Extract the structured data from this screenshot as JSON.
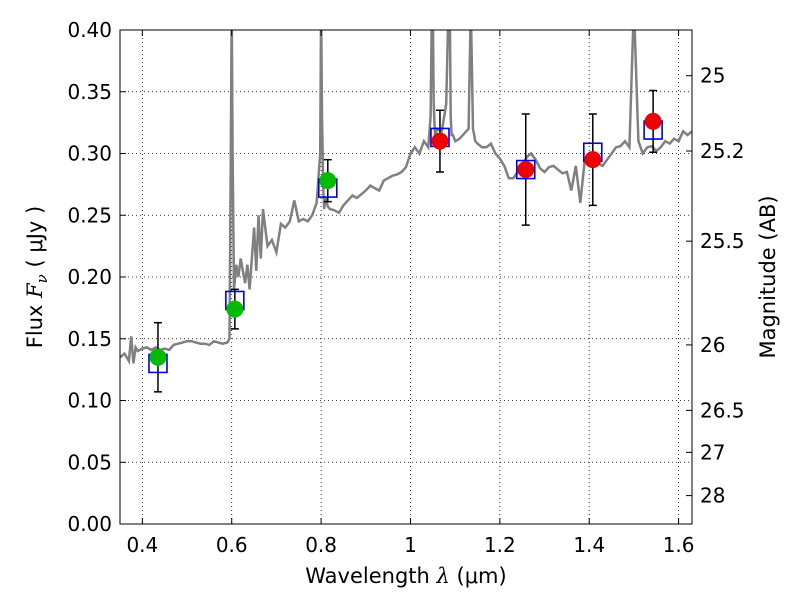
{
  "chart_data": {
    "type": "scatter",
    "xlabel": {
      "prefix": "Wavelength  ",
      "sym": "λ",
      "unit": " (μm)"
    },
    "ylabel": {
      "prefix": "Flux  ",
      "sym": "F",
      "sub": "ν",
      "unit": "  ( μJy )"
    },
    "y2label": "Magnitude (AB)",
    "xlim": [
      0.35,
      1.63
    ],
    "ylim": [
      0.0,
      0.4
    ],
    "grid": true,
    "x_ticks": [
      {
        "value": 0.4,
        "label": "0.4"
      },
      {
        "value": 0.6,
        "label": "0.6"
      },
      {
        "value": 0.8,
        "label": "0.8"
      },
      {
        "value": 1.0,
        "label": "1"
      },
      {
        "value": 1.2,
        "label": "1.2"
      },
      {
        "value": 1.4,
        "label": "1.4"
      },
      {
        "value": 1.6,
        "label": "1.6"
      }
    ],
    "y_ticks": [
      {
        "value": 0.0,
        "label": "0.00"
      },
      {
        "value": 0.05,
        "label": "0.05"
      },
      {
        "value": 0.1,
        "label": "0.10"
      },
      {
        "value": 0.15,
        "label": "0.15"
      },
      {
        "value": 0.2,
        "label": "0.20"
      },
      {
        "value": 0.25,
        "label": "0.25"
      },
      {
        "value": 0.3,
        "label": "0.30"
      },
      {
        "value": 0.35,
        "label": "0.35"
      },
      {
        "value": 0.4,
        "label": "0.40"
      }
    ],
    "y2_ticks": [
      {
        "label": "25",
        "flux": 0.363
      },
      {
        "label": "25.2",
        "flux": 0.302
      },
      {
        "label": "25.5",
        "flux": 0.229
      },
      {
        "label": "26",
        "flux": 0.145
      },
      {
        "label": "26.5",
        "flux": 0.092
      },
      {
        "label": "27",
        "flux": 0.058
      },
      {
        "label": "28",
        "flux": 0.023
      }
    ],
    "colors": {
      "spectrum": "#808080",
      "model_box": "#0000dd",
      "ground_point": "#00bb00",
      "space_point": "#ee0000",
      "errorbar": "#000000"
    },
    "spectrum": {
      "x": [
        0.35,
        0.36,
        0.37,
        0.375,
        0.38,
        0.385,
        0.39,
        0.4,
        0.41,
        0.42,
        0.43,
        0.44,
        0.45,
        0.46,
        0.47,
        0.48,
        0.49,
        0.5,
        0.51,
        0.52,
        0.53,
        0.54,
        0.55,
        0.56,
        0.57,
        0.58,
        0.59,
        0.595,
        0.598,
        0.6,
        0.602,
        0.605,
        0.61,
        0.615,
        0.62,
        0.625,
        0.63,
        0.635,
        0.64,
        0.65,
        0.655,
        0.66,
        0.665,
        0.67,
        0.68,
        0.69,
        0.7,
        0.71,
        0.72,
        0.73,
        0.74,
        0.75,
        0.76,
        0.77,
        0.78,
        0.79,
        0.798,
        0.8,
        0.802,
        0.805,
        0.807,
        0.81,
        0.815,
        0.82,
        0.83,
        0.84,
        0.85,
        0.86,
        0.87,
        0.88,
        0.89,
        0.9,
        0.91,
        0.92,
        0.93,
        0.94,
        0.95,
        0.96,
        0.97,
        0.98,
        0.99,
        1.0,
        1.01,
        1.02,
        1.03,
        1.04,
        1.045,
        1.048,
        1.05,
        1.052,
        1.055,
        1.06,
        1.07,
        1.08,
        1.085,
        1.088,
        1.09,
        1.092,
        1.095,
        1.1,
        1.11,
        1.12,
        1.13,
        1.135,
        1.14,
        1.145,
        1.15,
        1.16,
        1.17,
        1.18,
        1.19,
        1.2,
        1.21,
        1.22,
        1.23,
        1.24,
        1.25,
        1.26,
        1.27,
        1.28,
        1.29,
        1.3,
        1.31,
        1.32,
        1.33,
        1.34,
        1.35,
        1.36,
        1.37,
        1.38,
        1.39,
        1.4,
        1.41,
        1.42,
        1.43,
        1.44,
        1.45,
        1.46,
        1.47,
        1.48,
        1.49,
        1.5,
        1.51,
        1.52,
        1.53,
        1.54,
        1.55,
        1.56,
        1.57,
        1.58,
        1.59,
        1.6,
        1.61,
        1.62,
        1.63
      ],
      "y": [
        0.135,
        0.138,
        0.132,
        0.152,
        0.13,
        0.143,
        0.14,
        0.142,
        0.143,
        0.141,
        0.143,
        0.141,
        0.142,
        0.141,
        0.145,
        0.146,
        0.147,
        0.148,
        0.148,
        0.147,
        0.146,
        0.146,
        0.145,
        0.148,
        0.147,
        0.146,
        0.147,
        0.15,
        0.3,
        0.42,
        0.3,
        0.19,
        0.21,
        0.2,
        0.215,
        0.205,
        0.195,
        0.21,
        0.19,
        0.24,
        0.205,
        0.25,
        0.215,
        0.255,
        0.225,
        0.23,
        0.22,
        0.243,
        0.24,
        0.245,
        0.262,
        0.245,
        0.247,
        0.245,
        0.25,
        0.26,
        0.3,
        0.42,
        0.33,
        0.27,
        0.255,
        0.265,
        0.257,
        0.255,
        0.254,
        0.252,
        0.258,
        0.262,
        0.266,
        0.264,
        0.267,
        0.27,
        0.274,
        0.272,
        0.27,
        0.278,
        0.28,
        0.282,
        0.283,
        0.285,
        0.289,
        0.3,
        0.305,
        0.3,
        0.31,
        0.305,
        0.33,
        0.42,
        0.42,
        0.34,
        0.315,
        0.32,
        0.318,
        0.34,
        0.42,
        0.42,
        0.33,
        0.315,
        0.315,
        0.31,
        0.312,
        0.316,
        0.32,
        0.42,
        0.32,
        0.31,
        0.308,
        0.305,
        0.305,
        0.308,
        0.3,
        0.296,
        0.29,
        0.28,
        0.28,
        0.285,
        0.29,
        0.297,
        0.3,
        0.295,
        0.288,
        0.285,
        0.289,
        0.29,
        0.287,
        0.284,
        0.285,
        0.27,
        0.29,
        0.26,
        0.295,
        0.3,
        0.298,
        0.292,
        0.29,
        0.295,
        0.3,
        0.305,
        0.306,
        0.31,
        0.305,
        0.42,
        0.31,
        0.3,
        0.305,
        0.306,
        0.302,
        0.305,
        0.31,
        0.308,
        0.312,
        0.31,
        0.318,
        0.315,
        0.318
      ]
    },
    "model_boxes": [
      {
        "x": 0.435,
        "y": 0.13
      },
      {
        "x": 0.607,
        "y": 0.181
      },
      {
        "x": 0.815,
        "y": 0.272
      },
      {
        "x": 1.066,
        "y": 0.313
      },
      {
        "x": 1.258,
        "y": 0.287
      },
      {
        "x": 1.408,
        "y": 0.301
      },
      {
        "x": 1.543,
        "y": 0.319
      }
    ],
    "observed": [
      {
        "x": 0.435,
        "y": 0.135,
        "err": 0.028,
        "kind": "ground"
      },
      {
        "x": 0.607,
        "y": 0.174,
        "err": 0.016,
        "kind": "ground"
      },
      {
        "x": 0.815,
        "y": 0.278,
        "err": 0.017,
        "kind": "ground"
      },
      {
        "x": 1.066,
        "y": 0.31,
        "err": 0.025,
        "kind": "space"
      },
      {
        "x": 1.258,
        "y": 0.287,
        "err": 0.045,
        "kind": "space"
      },
      {
        "x": 1.408,
        "y": 0.295,
        "err": 0.037,
        "kind": "space"
      },
      {
        "x": 1.543,
        "y": 0.326,
        "err": 0.025,
        "kind": "space"
      }
    ]
  }
}
